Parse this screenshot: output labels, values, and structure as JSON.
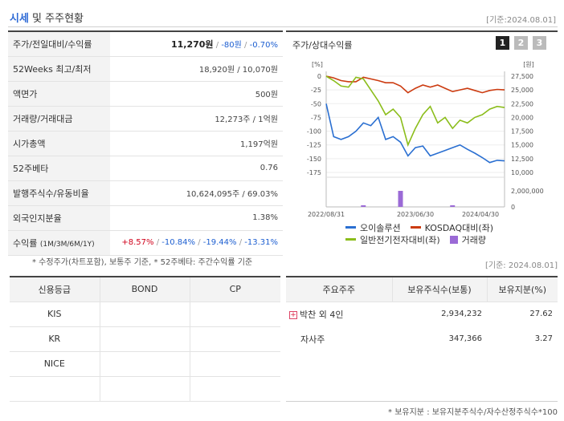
{
  "header": {
    "title_main": "시세",
    "title_rest": " 및 주주현황",
    "date": "[기준:2024.08.01]"
  },
  "price": {
    "rows": [
      {
        "label": "주가/전일대비/수익률",
        "price": "11,270원",
        "change": "-80원",
        "rate": "-0.70%"
      },
      {
        "label": "52Weeks 최고/최저",
        "value": "18,920원 / 10,070원"
      },
      {
        "label": "액면가",
        "value": "500원"
      },
      {
        "label": "거래량/거래대금",
        "value": "12,273주 / 1억원"
      },
      {
        "label": "시가총액",
        "value": "1,197억원"
      },
      {
        "label": "52주베타",
        "value": "0.76"
      },
      {
        "label": "발행주식수/유동비율",
        "value": "10,624,095주 / 69.03%"
      },
      {
        "label": "외국인지분율",
        "value": "1.38%"
      },
      {
        "label": "수익률",
        "label_sub": "(1M/3M/6M/1Y)",
        "r1": "+8.57%",
        "r2": "-10.84%",
        "r3": "-19.44%",
        "r4": "-13.31%"
      }
    ],
    "note": "* 수정주가(차트포함), 보통주 기준, * 52주베타: 주간수익률 기준"
  },
  "chart": {
    "title": "주가/상대수익률",
    "tabs": [
      "1",
      "2",
      "3"
    ],
    "active_tab": 0,
    "legend": {
      "s1": "오이솔루션",
      "s2": "KOSDAQ대비(좌)",
      "s3": "일반전기전자대비(좌)",
      "s4": "거래량"
    },
    "colors": {
      "s1": "#2a6fd1",
      "s2": "#cc3b10",
      "s3": "#8bbd1b",
      "s4": "#9b6ad6"
    }
  },
  "chart_data": {
    "type": "line",
    "left_axis_unit": "[%]",
    "right_axis_unit": "[원]",
    "ylim_left": [
      -175,
      0
    ],
    "ylim_right": [
      10000,
      27500
    ],
    "left_ticks": [
      "0",
      "-25",
      "-50",
      "-75",
      "-100",
      "-125",
      "-150",
      "-175"
    ],
    "right_ticks": [
      "27,500",
      "25,000",
      "22,500",
      "20,000",
      "17,500",
      "15,000",
      "12,500",
      "10,000"
    ],
    "volume_ticks": [
      "2,000,000",
      "0"
    ],
    "x_labels": [
      "2022/08/31",
      "2023/06/30",
      "2024/04/30"
    ],
    "series": [
      {
        "name": "오이솔루션",
        "axis": "right",
        "values": [
          22500,
          16500,
          16000,
          16500,
          17500,
          19000,
          18500,
          20000,
          16000,
          16500,
          15500,
          13000,
          14500,
          14800,
          13000,
          13500,
          14000,
          14500,
          15000,
          14200,
          13500,
          12700,
          11800,
          12200,
          12100
        ]
      },
      {
        "name": "KOSDAQ대비(좌)",
        "axis": "left",
        "values": [
          0,
          -3,
          -8,
          -10,
          -10,
          -2,
          -5,
          -8,
          -12,
          -12,
          -18,
          -30,
          -22,
          -16,
          -20,
          -16,
          -22,
          -28,
          -25,
          -22,
          -26,
          -30,
          -26,
          -24,
          -25
        ]
      },
      {
        "name": "일반전기전자대비(좌)",
        "axis": "left",
        "values": [
          0,
          -8,
          -18,
          -20,
          -2,
          -5,
          -25,
          -45,
          -70,
          -60,
          -75,
          -125,
          -95,
          -70,
          -55,
          -85,
          -75,
          -95,
          -80,
          -85,
          -75,
          -70,
          -60,
          -55,
          -57
        ]
      },
      {
        "name": "거래량",
        "axis": "volume",
        "values": [
          0,
          0,
          0,
          0,
          0,
          60000,
          0,
          0,
          0,
          0,
          2000000,
          0,
          0,
          0,
          0,
          0,
          0,
          70000,
          0,
          0,
          0,
          0,
          0,
          0,
          0
        ]
      }
    ]
  },
  "credit": {
    "headers": [
      "신용등급",
      "BOND",
      "CP"
    ],
    "rows": [
      {
        "agency": "KIS",
        "bond": "",
        "cp": ""
      },
      {
        "agency": "KR",
        "bond": "",
        "cp": ""
      },
      {
        "agency": "NICE",
        "bond": "",
        "cp": ""
      },
      {
        "agency": "",
        "bond": "",
        "cp": ""
      }
    ]
  },
  "holders": {
    "date": "[기준: 2024.08.01]",
    "headers": [
      "주요주주",
      "보유주식수(보통)",
      "보유지분(%)"
    ],
    "rows": [
      {
        "name": "박찬 외 4인",
        "shares": "2,934,232",
        "pct": "27.62",
        "expandable": true
      },
      {
        "name": "자사주",
        "shares": "347,366",
        "pct": "3.27",
        "expandable": false
      }
    ],
    "note": "* 보유지분 : 보유지분주식수/자수산정주식수*100"
  }
}
